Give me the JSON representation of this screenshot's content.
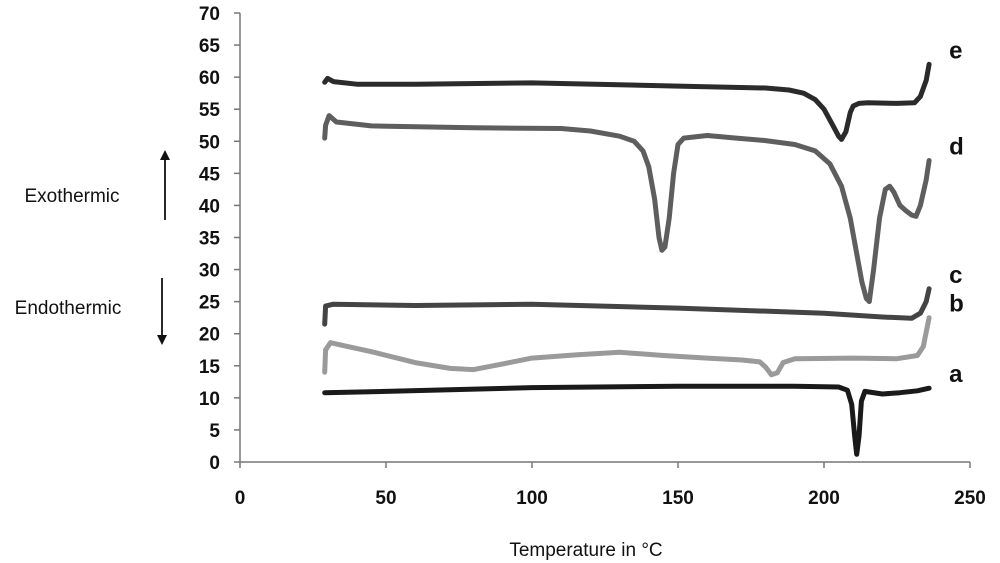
{
  "chart_data": {
    "type": "line",
    "xlabel": "Temperature in °C",
    "ylabel": "",
    "xlim": [
      0,
      250
    ],
    "ylim": [
      0,
      70
    ],
    "x_ticks": [
      0,
      50,
      100,
      150,
      200,
      250
    ],
    "y_ticks": [
      0,
      5,
      10,
      15,
      20,
      25,
      30,
      35,
      40,
      45,
      50,
      55,
      60,
      65,
      70
    ],
    "grid": false,
    "annotations": [
      {
        "text": "Exothermic",
        "direction": "up"
      },
      {
        "text": "Endothermic",
        "direction": "down"
      }
    ],
    "series": [
      {
        "name": "a",
        "color": "#1a1a1a",
        "points": [
          [
            29,
            10.8
          ],
          [
            50,
            11.0
          ],
          [
            100,
            11.6
          ],
          [
            150,
            11.8
          ],
          [
            190,
            11.8
          ],
          [
            205,
            11.7
          ],
          [
            208,
            11.2
          ],
          [
            209.5,
            9.0
          ],
          [
            210.5,
            4.0
          ],
          [
            211.2,
            1.2
          ],
          [
            212,
            4.0
          ],
          [
            212.8,
            9.5
          ],
          [
            214,
            11.0
          ],
          [
            220,
            10.6
          ],
          [
            226,
            10.8
          ],
          [
            232,
            11.1
          ],
          [
            236,
            11.5
          ]
        ]
      },
      {
        "name": "b",
        "color": "#9a9a9a",
        "points": [
          [
            29,
            14.0
          ],
          [
            29.3,
            17.5
          ],
          [
            31,
            18.6
          ],
          [
            35,
            18.2
          ],
          [
            45,
            17.2
          ],
          [
            60,
            15.5
          ],
          [
            72,
            14.6
          ],
          [
            80,
            14.4
          ],
          [
            90,
            15.3
          ],
          [
            100,
            16.2
          ],
          [
            115,
            16.7
          ],
          [
            130,
            17.1
          ],
          [
            145,
            16.6
          ],
          [
            160,
            16.2
          ],
          [
            172,
            15.9
          ],
          [
            178,
            15.6
          ],
          [
            180,
            14.8
          ],
          [
            182,
            13.6
          ],
          [
            184,
            13.9
          ],
          [
            186,
            15.5
          ],
          [
            190,
            16.1
          ],
          [
            210,
            16.2
          ],
          [
            225,
            16.1
          ],
          [
            232,
            16.6
          ],
          [
            234,
            18.0
          ],
          [
            236,
            22.5
          ]
        ]
      },
      {
        "name": "c",
        "color": "#444444",
        "points": [
          [
            29,
            21.5
          ],
          [
            29.3,
            24.3
          ],
          [
            32,
            24.6
          ],
          [
            60,
            24.4
          ],
          [
            100,
            24.6
          ],
          [
            150,
            24.0
          ],
          [
            200,
            23.2
          ],
          [
            220,
            22.6
          ],
          [
            230,
            22.4
          ],
          [
            233,
            23.2
          ],
          [
            235,
            25.0
          ],
          [
            236,
            27.0
          ]
        ]
      },
      {
        "name": "d",
        "color": "#5e5e5e",
        "points": [
          [
            29,
            50.5
          ],
          [
            29.3,
            52.5
          ],
          [
            30.5,
            54.0
          ],
          [
            33,
            53.0
          ],
          [
            45,
            52.4
          ],
          [
            80,
            52.1
          ],
          [
            110,
            52.0
          ],
          [
            120,
            51.6
          ],
          [
            130,
            50.8
          ],
          [
            135,
            50.0
          ],
          [
            138,
            48.5
          ],
          [
            140,
            46.0
          ],
          [
            142,
            41.0
          ],
          [
            143.5,
            35.0
          ],
          [
            144.5,
            33.0
          ],
          [
            145.5,
            33.5
          ],
          [
            147,
            38.0
          ],
          [
            148.5,
            45.0
          ],
          [
            150,
            49.5
          ],
          [
            152,
            50.5
          ],
          [
            160,
            50.9
          ],
          [
            170,
            50.5
          ],
          [
            180,
            50.1
          ],
          [
            190,
            49.5
          ],
          [
            197,
            48.5
          ],
          [
            202,
            46.5
          ],
          [
            206,
            43.0
          ],
          [
            209,
            38.0
          ],
          [
            211,
            33.0
          ],
          [
            213,
            28.0
          ],
          [
            214.5,
            25.5
          ],
          [
            215.5,
            25.0
          ],
          [
            217,
            30.0
          ],
          [
            219,
            38.0
          ],
          [
            221,
            42.5
          ],
          [
            222.5,
            43.0
          ],
          [
            224,
            42.0
          ],
          [
            226,
            40.0
          ],
          [
            228,
            39.2
          ],
          [
            230,
            38.5
          ],
          [
            231.5,
            38.3
          ],
          [
            233,
            40.0
          ],
          [
            235,
            44.0
          ],
          [
            236,
            47.0
          ]
        ]
      },
      {
        "name": "e",
        "color": "#2b2b2b",
        "points": [
          [
            29,
            59.2
          ],
          [
            30,
            59.8
          ],
          [
            32,
            59.3
          ],
          [
            40,
            58.9
          ],
          [
            60,
            58.9
          ],
          [
            100,
            59.1
          ],
          [
            150,
            58.6
          ],
          [
            180,
            58.3
          ],
          [
            188,
            58.0
          ],
          [
            193,
            57.5
          ],
          [
            197,
            56.5
          ],
          [
            200,
            55.0
          ],
          [
            203,
            52.5
          ],
          [
            205,
            50.8
          ],
          [
            206,
            50.3
          ],
          [
            207.5,
            51.5
          ],
          [
            209,
            54.5
          ],
          [
            210,
            55.5
          ],
          [
            212,
            55.9
          ],
          [
            215,
            56.0
          ],
          [
            225,
            55.9
          ],
          [
            231,
            56.0
          ],
          [
            233,
            57.0
          ],
          [
            235,
            59.5
          ],
          [
            236,
            62.0
          ]
        ]
      }
    ],
    "series_labels": [
      "e",
      "d",
      "c",
      "b",
      "a"
    ]
  }
}
